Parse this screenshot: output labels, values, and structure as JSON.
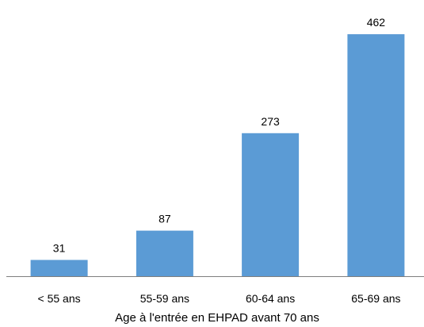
{
  "chart_data": {
    "type": "bar",
    "categories": [
      "< 55 ans",
      "55-59 ans",
      "60-64 ans",
      "65-69 ans"
    ],
    "values": [
      31,
      87,
      273,
      462
    ],
    "data_labels": [
      "31",
      "87",
      "273",
      "462"
    ],
    "xlabel": "Age à l'entrée en EHPAD avant 70 ans",
    "ylabel": "",
    "ylim": [
      0,
      500
    ],
    "grid": false,
    "legend": "none",
    "bar_color": "#5B9BD5",
    "axis_color": "#7F7F7F"
  }
}
